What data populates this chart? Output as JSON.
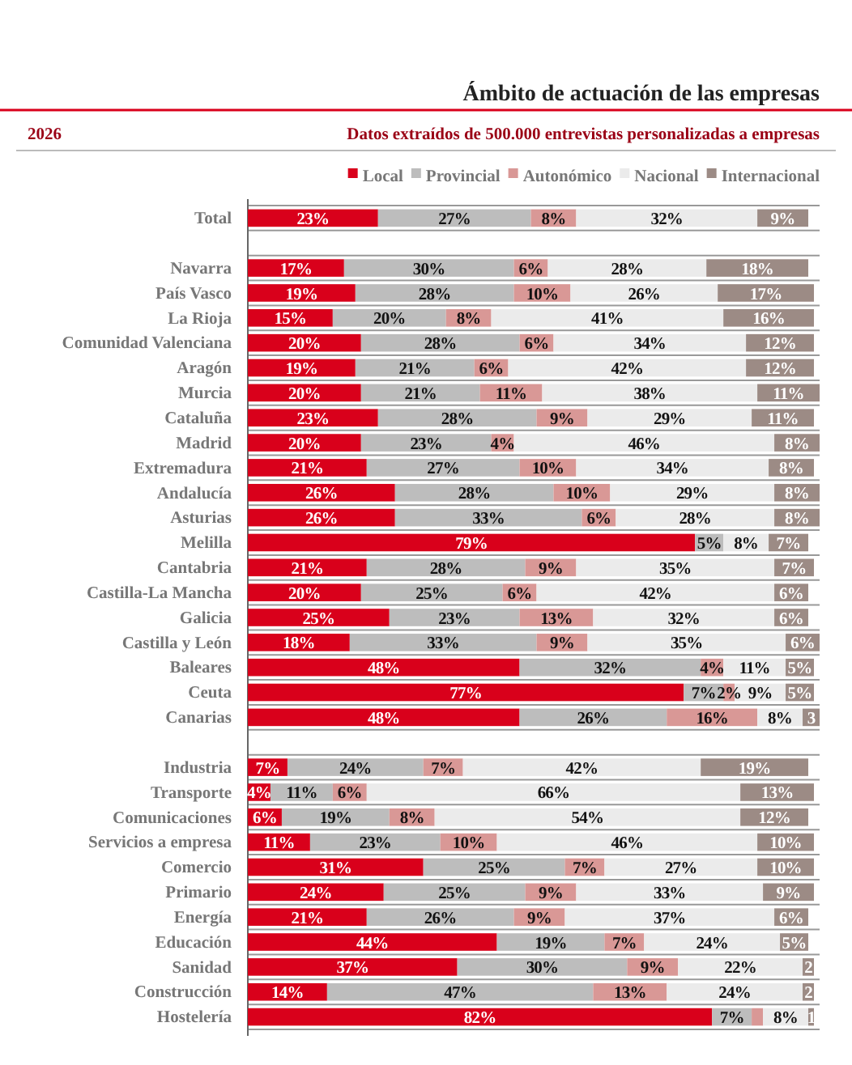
{
  "chart_data": {
    "type": "bar",
    "orientation": "horizontal",
    "stacked": true,
    "title": "Ámbito de actuación de las empresas",
    "subtitle": "Datos extraídos de 500.000 entrevistas personalizadas a empresas",
    "annotations": [
      "2026"
    ],
    "categories": [
      "Total",
      null,
      "Navarra",
      "País Vasco",
      "La Rioja",
      "Comunidad Valenciana",
      "Aragón",
      "Murcia",
      "Cataluña",
      "Madrid",
      "Extremadura",
      "Andalucía",
      "Asturias",
      "Melilla",
      "Cantabria",
      "Castilla-La Mancha",
      "Galicia",
      "Castilla y León",
      "Baleares",
      "Ceuta",
      "Canarias",
      null,
      "Industria",
      "Transporte",
      "Comunicaciones",
      "Servicios a empresa",
      "Comercio",
      "Primario",
      "Energía",
      "Educación",
      "Sanidad",
      "Construcción",
      "Hostelería"
    ],
    "xlim": [
      0,
      101
    ],
    "tick_labels": "y",
    "grid": "y",
    "legend": "top right",
    "series": [
      {
        "name": "Local",
        "color": "#d9001b",
        "values": [
          23,
          null,
          17,
          19,
          15,
          20,
          19,
          20,
          23,
          20,
          21,
          26,
          26,
          79,
          21,
          20,
          25,
          18,
          48,
          77,
          48,
          null,
          7,
          4,
          6,
          11,
          31,
          24,
          21,
          44,
          37,
          14,
          82
        ],
        "value_labels": [
          "23%",
          null,
          "17%",
          "19%",
          "15%",
          "20%",
          "19%",
          "20%",
          "23%",
          "20%",
          "21%",
          "26%",
          "26%",
          "79%",
          "21%",
          "20%",
          "25%",
          "18%",
          "48%",
          "77%",
          "48%",
          null,
          "7%",
          "4%",
          "6%",
          "11%",
          "31%",
          "24%",
          "21%",
          "44%",
          "37%",
          "14%",
          "82%"
        ]
      },
      {
        "name": "Provincial",
        "color": "#bdbdbd",
        "values": [
          27,
          null,
          30,
          28,
          20,
          28,
          21,
          21,
          28,
          23,
          27,
          28,
          33,
          5,
          28,
          25,
          23,
          33,
          32,
          7,
          26,
          null,
          24,
          11,
          19,
          23,
          25,
          25,
          26,
          19,
          30,
          47,
          7
        ],
        "value_labels": [
          "27%",
          null,
          "30%",
          "28%",
          "20%",
          "28%",
          "21%",
          "21%",
          "28%",
          "23%",
          "27%",
          "28%",
          "33%",
          "5%",
          "28%",
          "25%",
          "23%",
          "33%",
          "32%",
          "7%",
          "26%",
          null,
          "24%",
          "11%",
          "19%",
          "23%",
          "25%",
          "25%",
          "26%",
          "19%",
          "30%",
          "47%",
          "7%"
        ]
      },
      {
        "name": "Autonómico",
        "color": "#d99896",
        "values": [
          8,
          null,
          6,
          10,
          8,
          6,
          6,
          11,
          9,
          4,
          10,
          10,
          6,
          null,
          9,
          6,
          13,
          9,
          4,
          2,
          16,
          null,
          7,
          6,
          8,
          10,
          7,
          9,
          9,
          7,
          9,
          13,
          2
        ],
        "value_labels": [
          "8%",
          null,
          "6%",
          "10%",
          "8%",
          "6%",
          "6%",
          "11%",
          "9%",
          "4%",
          "10%",
          "10%",
          "6%",
          null,
          "9%",
          "6%",
          "13%",
          "9%",
          "4%",
          "2%",
          "16%",
          null,
          "7%",
          "6%",
          "8%",
          "10%",
          "7%",
          "9%",
          "9%",
          "7%",
          "9%",
          "13%",
          null
        ]
      },
      {
        "name": "Nacional",
        "color": "#ebebeb",
        "values": [
          32,
          null,
          28,
          26,
          41,
          34,
          42,
          38,
          29,
          46,
          34,
          29,
          28,
          8,
          35,
          42,
          32,
          35,
          11,
          9,
          8,
          null,
          42,
          66,
          54,
          46,
          27,
          33,
          37,
          24,
          22,
          24,
          8
        ],
        "value_labels": [
          "32%",
          null,
          "28%",
          "26%",
          "41%",
          "34%",
          "42%",
          "38%",
          "29%",
          "46%",
          "34%",
          "29%",
          "28%",
          "8%",
          "35%",
          "42%",
          "32%",
          "35%",
          "11%",
          "9%",
          "8%",
          null,
          "42%",
          "66%",
          "54%",
          "46%",
          "27%",
          "33%",
          "37%",
          "24%",
          "22%",
          "24%",
          "8%"
        ]
      },
      {
        "name": "Internacional",
        "color": "#9c8b85",
        "values": [
          9,
          null,
          18,
          17,
          16,
          12,
          12,
          11,
          11,
          8,
          8,
          8,
          8,
          7,
          7,
          6,
          6,
          6,
          5,
          5,
          3,
          null,
          19,
          13,
          12,
          10,
          10,
          9,
          6,
          5,
          2,
          2,
          1
        ],
        "value_labels": [
          "9%",
          null,
          "18%",
          "17%",
          "16%",
          "12%",
          "12%",
          "11%",
          "11%",
          "8%",
          "8%",
          "8%",
          "8%",
          "7%",
          "7%",
          "6%",
          "6%",
          "6%",
          "5%",
          "5%",
          "3",
          null,
          "19%",
          "13%",
          "12%",
          "10%",
          "10%",
          "9%",
          "6%",
          "5%",
          "2",
          "2",
          "1"
        ]
      }
    ]
  }
}
